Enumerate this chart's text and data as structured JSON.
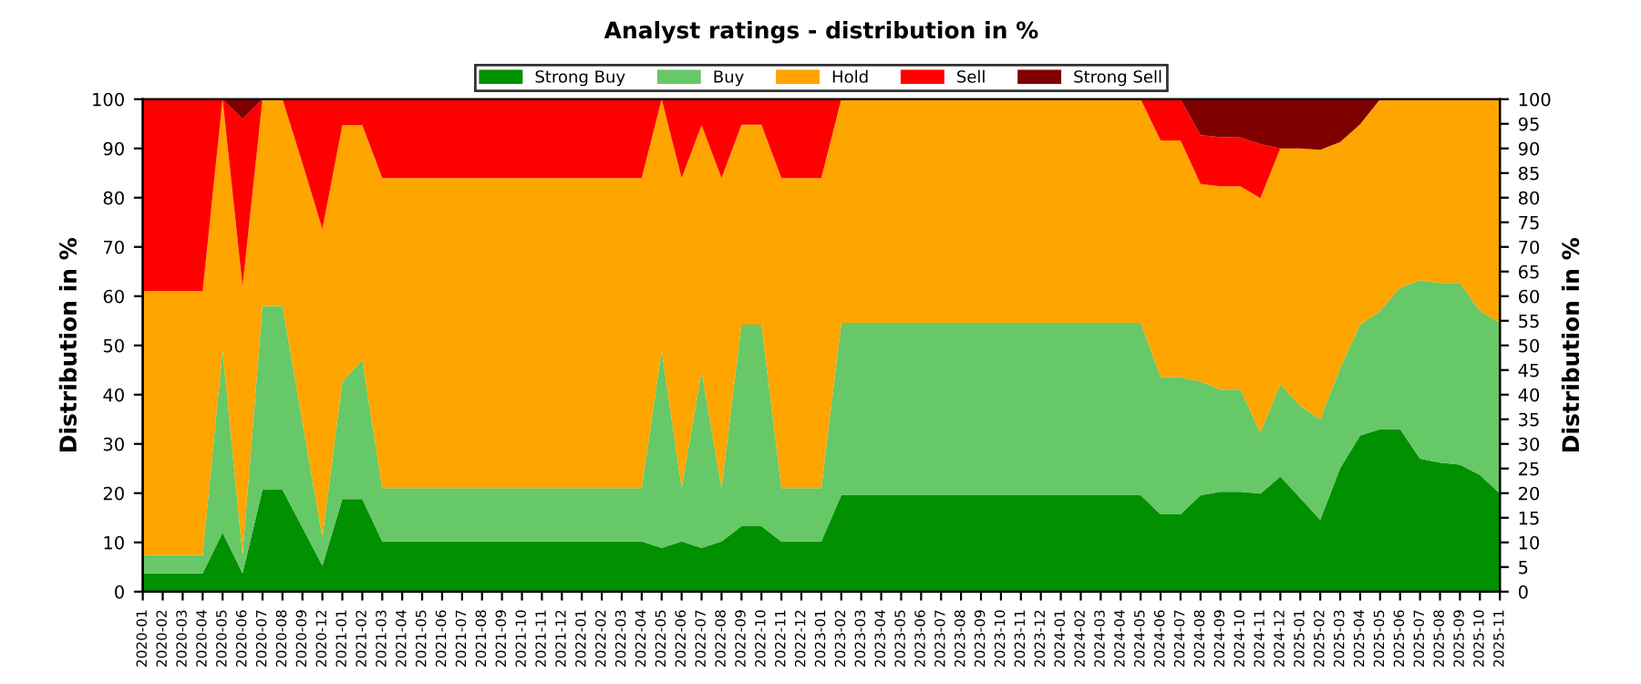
{
  "chart_data": {
    "type": "area",
    "stacked": true,
    "title": "Analyst ratings - distribution in %",
    "ylabel": "Distribution in %",
    "y2label": "Distribution in %",
    "categories": [
      "2020-01",
      "2020-02",
      "2020-03",
      "2020-04",
      "2020-05",
      "2020-06",
      "2020-07",
      "2020-08",
      "2020-09",
      "2020-12",
      "2021-01",
      "2021-02",
      "2021-03",
      "2021-04",
      "2021-05",
      "2021-06",
      "2021-07",
      "2021-08",
      "2021-09",
      "2021-10",
      "2021-11",
      "2021-12",
      "2022-01",
      "2022-02",
      "2022-03",
      "2022-04",
      "2022-05",
      "2022-06",
      "2022-07",
      "2022-08",
      "2022-09",
      "2022-10",
      "2022-11",
      "2022-12",
      "2023-01",
      "2023-02",
      "2023-03",
      "2023-04",
      "2023-05",
      "2023-06",
      "2023-07",
      "2023-08",
      "2023-09",
      "2023-10",
      "2023-11",
      "2023-12",
      "2024-01",
      "2024-02",
      "2024-03",
      "2024-04",
      "2024-05",
      "2024-06",
      "2024-07",
      "2024-08",
      "2024-09",
      "2024-10",
      "2024-11",
      "2024-12",
      "2025-01",
      "2025-02",
      "2025-03",
      "2025-04",
      "2025-05",
      "2025-06",
      "2025-07",
      "2025-08",
      "2025-09",
      "2025-10",
      "2025-11"
    ],
    "series": [
      {
        "name": "Strong Buy",
        "color": "#009000",
        "values": [
          3.7,
          3.7,
          3.7,
          3.7,
          12,
          3.7,
          20.7,
          20.7,
          13,
          5.3,
          18.8,
          18.8,
          10.2,
          10.2,
          10.2,
          10.2,
          10.2,
          10.2,
          10.2,
          10.2,
          10.2,
          10.2,
          10.2,
          10.2,
          10.2,
          10.2,
          8.9,
          10.2,
          8.9,
          10.2,
          13.3,
          13.3,
          10.2,
          10.2,
          10.2,
          19.6,
          19.6,
          19.6,
          19.6,
          19.6,
          19.6,
          19.6,
          19.6,
          19.6,
          19.6,
          19.6,
          19.6,
          19.6,
          19.6,
          19.6,
          19.6,
          15.7,
          15.7,
          19.6,
          20.3,
          20.3,
          19.9,
          23.4,
          19,
          14.6,
          25.1,
          31.7,
          33,
          33,
          27,
          26.2,
          25.8,
          23.7,
          19.9
        ]
      },
      {
        "name": "Buy",
        "color": "#66c866",
        "values": [
          3.7,
          3.7,
          3.7,
          3.7,
          37,
          3.8,
          37.3,
          37.3,
          21.4,
          5.7,
          23.9,
          28.2,
          10.8,
          10.8,
          10.8,
          10.8,
          10.8,
          10.8,
          10.8,
          10.8,
          10.8,
          10.8,
          10.8,
          10.8,
          10.8,
          10.8,
          40.1,
          10.8,
          35.8,
          10.8,
          40.9,
          40.9,
          10.8,
          10.8,
          10.8,
          35,
          35,
          35,
          35,
          35,
          35,
          35,
          35,
          35,
          35,
          35,
          35,
          35,
          35,
          35,
          35,
          27.9,
          27.8,
          23.1,
          20.7,
          20.7,
          12.3,
          18.7,
          18.7,
          20.4,
          20.3,
          22.5,
          24,
          28.7,
          36.2,
          36.5,
          36.9,
          33.3,
          34.7
        ]
      },
      {
        "name": "Hold",
        "color": "#ffa500",
        "values": [
          53.6,
          53.6,
          53.6,
          53.6,
          51,
          54.5,
          42,
          42,
          52.6,
          62.6,
          52,
          47.7,
          63,
          63,
          63,
          63,
          63,
          63,
          63,
          63,
          63,
          63,
          63,
          63,
          63,
          63,
          51,
          63,
          50,
          63,
          40.6,
          40.6,
          63,
          63,
          63,
          45.4,
          45.4,
          45.4,
          45.4,
          45.4,
          45.4,
          45.4,
          45.4,
          45.4,
          45.4,
          45.4,
          45.4,
          45.4,
          45.4,
          45.4,
          45.4,
          48,
          48.1,
          40.1,
          41.3,
          41.3,
          47.7,
          47.9,
          52.3,
          54.7,
          45.9,
          40.7,
          43,
          38.3,
          36.8,
          37.3,
          37.3,
          43,
          45.4
        ]
      },
      {
        "name": "Sell",
        "color": "#ff0000",
        "values": [
          39,
          39,
          39,
          39,
          0,
          34,
          0,
          0,
          13,
          26.4,
          5.3,
          5.3,
          16,
          16,
          16,
          16,
          16,
          16,
          16,
          16,
          16,
          16,
          16,
          16,
          16,
          16,
          0,
          16,
          5.3,
          16,
          5.2,
          5.2,
          16,
          16,
          16,
          0,
          0,
          0,
          0,
          0,
          0,
          0,
          0,
          0,
          0,
          0,
          0,
          0,
          0,
          0,
          0,
          8.4,
          8.4,
          9.9,
          10,
          9.9,
          11,
          0,
          0,
          0,
          0,
          0,
          0,
          0,
          0,
          0,
          0,
          0,
          0
        ]
      },
      {
        "name": "Strong Sell",
        "color": "#800000",
        "values": [
          0,
          0,
          0,
          0,
          0,
          4,
          0,
          0,
          0,
          0,
          0,
          0,
          0,
          0,
          0,
          0,
          0,
          0,
          0,
          0,
          0,
          0,
          0,
          0,
          0,
          0,
          0,
          0,
          0,
          0,
          0,
          0,
          0,
          0,
          0,
          0,
          0,
          0,
          0,
          0,
          0,
          0,
          0,
          0,
          0,
          0,
          0,
          0,
          0,
          0,
          0,
          0,
          0,
          7.3,
          7.7,
          7.8,
          9.1,
          10,
          10,
          10.3,
          8.7,
          5.1,
          0,
          0,
          0,
          0,
          0,
          0,
          0
        ]
      }
    ],
    "ylim": [
      0,
      100
    ],
    "yticks": [
      0,
      10,
      20,
      30,
      40,
      50,
      60,
      70,
      80,
      90,
      100
    ],
    "y2lim": [
      0,
      100
    ],
    "y2ticks": [
      0,
      5,
      10,
      15,
      20,
      25,
      30,
      35,
      40,
      45,
      50,
      55,
      60,
      65,
      70,
      75,
      80,
      85,
      90,
      95,
      100
    ],
    "grid": "y",
    "legend": "top"
  }
}
